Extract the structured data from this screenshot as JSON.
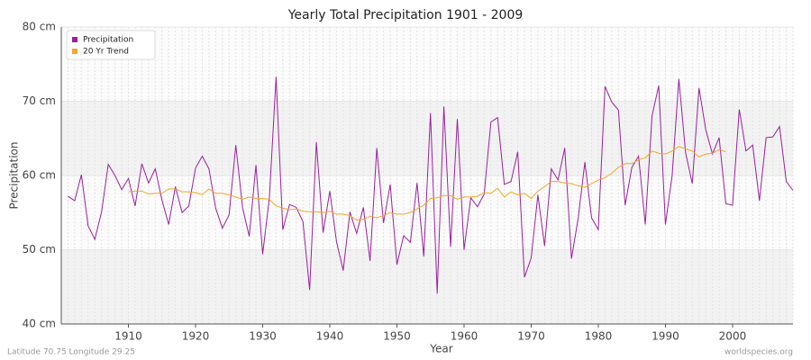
{
  "chart_data": {
    "type": "line",
    "title": "Yearly Total Precipitation 1901 - 2009",
    "x_label": "Year",
    "y_label": "Precipitation",
    "footer_left": "Latitude 70.75 Longitude 29.25",
    "footer_right": "worldspecies.org",
    "legend_position": "upper left",
    "grid": true,
    "xlim": [
      1900,
      2009
    ],
    "xticks": [
      1910,
      1920,
      1930,
      1940,
      1950,
      1960,
      1970,
      1980,
      1990,
      2000
    ],
    "ylim": [
      40,
      80
    ],
    "yticks": [
      {
        "value": 40,
        "label": "40 cm"
      },
      {
        "value": 50,
        "label": "50 cm"
      },
      {
        "value": 60,
        "label": "60 cm"
      },
      {
        "value": 70,
        "label": "70 cm"
      },
      {
        "value": 80,
        "label": "80 cm"
      }
    ],
    "x": [
      1901,
      1902,
      1903,
      1904,
      1905,
      1906,
      1907,
      1908,
      1909,
      1910,
      1911,
      1912,
      1913,
      1914,
      1915,
      1916,
      1917,
      1918,
      1919,
      1920,
      1921,
      1922,
      1923,
      1924,
      1925,
      1926,
      1927,
      1928,
      1929,
      1930,
      1931,
      1932,
      1933,
      1934,
      1935,
      1936,
      1937,
      1938,
      1939,
      1940,
      1941,
      1942,
      1943,
      1944,
      1945,
      1946,
      1947,
      1948,
      1949,
      1950,
      1951,
      1952,
      1953,
      1954,
      1955,
      1956,
      1957,
      1958,
      1959,
      1960,
      1961,
      1962,
      1963,
      1964,
      1965,
      1966,
      1967,
      1968,
      1969,
      1970,
      1971,
      1972,
      1973,
      1974,
      1975,
      1976,
      1977,
      1978,
      1979,
      1980,
      1981,
      1982,
      1983,
      1984,
      1985,
      1986,
      1987,
      1988,
      1989,
      1990,
      1991,
      1992,
      1993,
      1994,
      1995,
      1996,
      1997,
      1998,
      1999,
      2000,
      2001,
      2002,
      2003,
      2004,
      2005,
      2006,
      2007,
      2008,
      2009
    ],
    "series": [
      {
        "name": "Precipitation",
        "color": "#9b1fa0",
        "values": [
          57.2,
          56.6,
          60.1,
          53.2,
          51.4,
          55.1,
          61.5,
          60.0,
          58.1,
          59.6,
          55.9,
          61.6,
          59.0,
          60.9,
          56.7,
          53.4,
          58.5,
          55.0,
          55.9,
          61.0,
          62.6,
          60.9,
          55.6,
          52.9,
          54.7,
          64.1,
          55.7,
          51.8,
          61.4,
          49.4,
          57.0,
          73.3,
          52.7,
          56.1,
          55.7,
          53.8,
          44.6,
          64.5,
          52.3,
          57.9,
          51.1,
          47.2,
          55.1,
          52.2,
          55.7,
          48.5,
          63.7,
          53.6,
          58.8,
          48.0,
          51.9,
          51.0,
          59.0,
          49.1,
          68.4,
          44.1,
          69.3,
          50.4,
          67.6,
          50.0,
          57.0,
          55.8,
          57.5,
          67.2,
          67.8,
          58.8,
          59.2,
          63.2,
          46.3,
          48.9,
          57.4,
          50.5,
          60.9,
          59.4,
          63.7,
          48.8,
          54.2,
          61.8,
          54.3,
          52.7,
          72.0,
          69.9,
          68.8,
          56.0,
          61.1,
          62.6,
          53.4,
          68.0,
          72.1,
          53.4,
          60.0,
          73.0,
          63.1,
          58.9,
          71.8,
          66.2,
          62.9,
          65.1,
          56.2,
          56.0,
          68.9,
          63.3,
          64.1,
          56.6,
          65.1,
          65.2,
          66.6,
          59.2,
          58.0
        ]
      },
      {
        "name": "20 Yr Trend",
        "color": "#f5a623",
        "values": [
          null,
          null,
          null,
          null,
          null,
          null,
          null,
          null,
          null,
          57.8,
          57.9,
          57.9,
          57.5,
          57.6,
          57.6,
          58.2,
          58.2,
          57.8,
          57.8,
          57.7,
          57.4,
          58.2,
          57.6,
          57.6,
          57.4,
          57.1,
          56.8,
          57.1,
          56.9,
          56.9,
          56.8,
          55.9,
          55.6,
          55.4,
          55.5,
          55.2,
          55.1,
          55.1,
          55.0,
          55.2,
          54.8,
          54.8,
          54.6,
          54.0,
          54.1,
          54.5,
          54.3,
          54.6,
          55.0,
          54.8,
          54.8,
          55.0,
          55.5,
          56.0,
          56.9,
          57.0,
          57.3,
          57.3,
          56.8,
          57.1,
          57.1,
          57.2,
          57.7,
          57.6,
          58.3,
          57.1,
          57.8,
          57.4,
          57.6,
          56.9,
          57.9,
          58.5,
          59.2,
          59.2,
          59.0,
          58.9,
          58.6,
          58.4,
          58.9,
          59.4,
          59.7,
          60.3,
          61.1,
          61.6,
          61.6,
          62.1,
          62.4,
          63.3,
          63.0,
          62.9,
          63.3,
          63.9,
          63.6,
          63.3,
          62.5,
          62.9,
          63.0,
          63.5,
          63.2,
          null,
          null,
          null,
          null,
          null,
          null,
          null,
          null,
          null,
          null
        ]
      }
    ]
  }
}
